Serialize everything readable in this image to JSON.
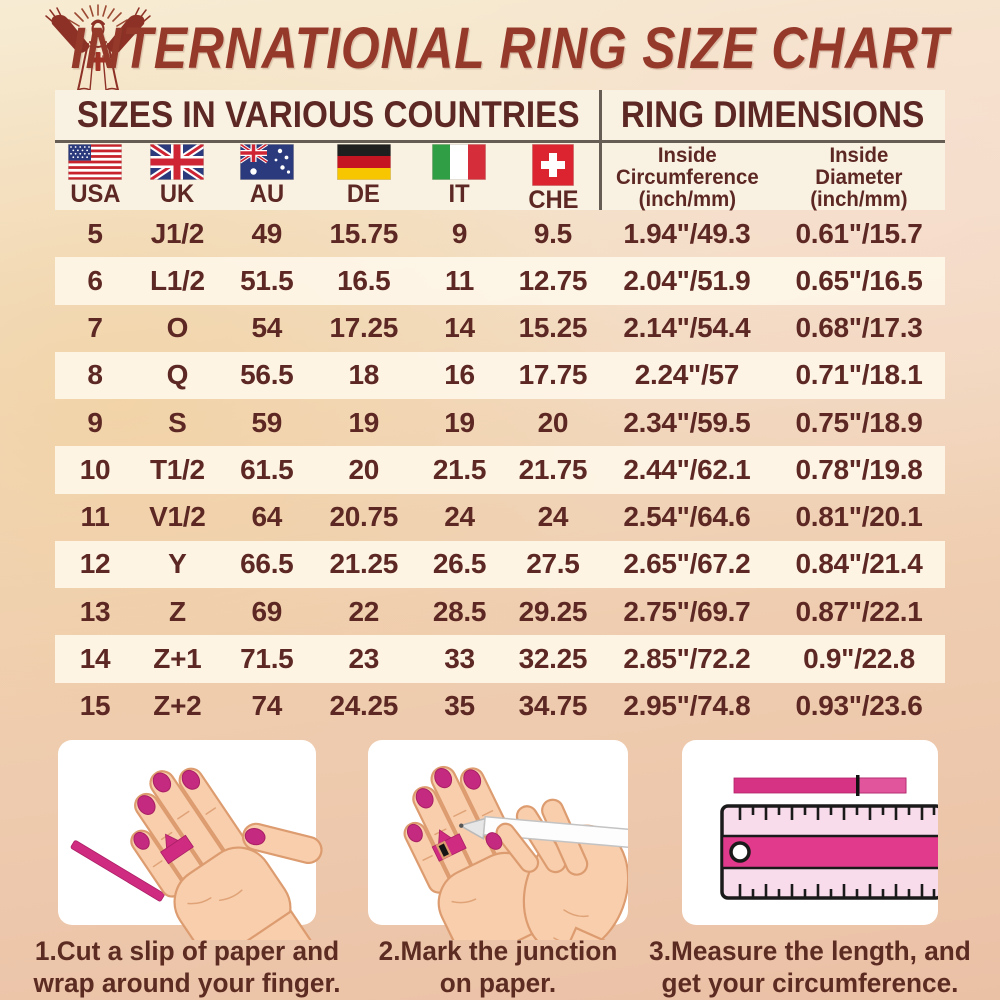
{
  "page": {
    "title": "INTERNATIONAL RING SIZE CHART"
  },
  "icons": {
    "logo": "jesus-with-rays",
    "flags": [
      "usa",
      "uk",
      "au",
      "de",
      "it",
      "che"
    ],
    "illustrations": [
      "hand-with-paper-slip",
      "marking-junction-with-pen",
      "ruler-measuring-strip"
    ]
  },
  "colors": {
    "title_red": "#95392b",
    "text_maroon": "#5d2823",
    "cream_band": "#f9f1e1",
    "divider_gray": "#665e54",
    "accent_pink": "#cf2b80",
    "ruler_magenta": "#e0348a"
  },
  "table": {
    "section_headers": {
      "countries": "SIZES IN VARIOUS COUNTRIES",
      "dimensions": "RING DIMENSIONS"
    },
    "columns": [
      {
        "code": "USA"
      },
      {
        "code": "UK"
      },
      {
        "code": "AU"
      },
      {
        "code": "DE"
      },
      {
        "code": "IT"
      },
      {
        "code": "CHE"
      }
    ],
    "dimension_headers": [
      {
        "line1": "Inside",
        "line2": "Circumference",
        "line3": "(inch/mm)"
      },
      {
        "line1": "Inside",
        "line2": "Diameter",
        "line3": "(inch/mm)"
      }
    ]
  },
  "chart_data": {
    "type": "table",
    "title": "INTERNATIONAL RING SIZE CHART",
    "columns": [
      "USA",
      "UK",
      "AU",
      "DE",
      "IT",
      "CHE",
      "Inside Circumference (inch/mm)",
      "Inside Diameter (inch/mm)"
    ],
    "rows": [
      [
        "5",
        "J1/2",
        "49",
        "15.75",
        "9",
        "9.5",
        "1.94\"/49.3",
        "0.61\"/15.7"
      ],
      [
        "6",
        "L1/2",
        "51.5",
        "16.5",
        "11",
        "12.75",
        "2.04\"/51.9",
        "0.65\"/16.5"
      ],
      [
        "7",
        "O",
        "54",
        "17.25",
        "14",
        "15.25",
        "2.14\"/54.4",
        "0.68\"/17.3"
      ],
      [
        "8",
        "Q",
        "56.5",
        "18",
        "16",
        "17.75",
        "2.24\"/57",
        "0.71\"/18.1"
      ],
      [
        "9",
        "S",
        "59",
        "19",
        "19",
        "20",
        "2.34\"/59.5",
        "0.75\"/18.9"
      ],
      [
        "10",
        "T1/2",
        "61.5",
        "20",
        "21.5",
        "21.75",
        "2.44\"/62.1",
        "0.78\"/19.8"
      ],
      [
        "11",
        "V1/2",
        "64",
        "20.75",
        "24",
        "24",
        "2.54\"/64.6",
        "0.81\"/20.1"
      ],
      [
        "12",
        "Y",
        "66.5",
        "21.25",
        "26.5",
        "27.5",
        "2.65\"/67.2",
        "0.84\"/21.4"
      ],
      [
        "13",
        "Z",
        "69",
        "22",
        "28.5",
        "29.25",
        "2.75\"/69.7",
        "0.87\"/22.1"
      ],
      [
        "14",
        "Z+1",
        "71.5",
        "23",
        "33",
        "32.25",
        "2.85\"/72.2",
        "0.9\"/22.8"
      ],
      [
        "15",
        "Z+2",
        "74",
        "24.25",
        "35",
        "34.75",
        "2.95\"/74.8",
        "0.93\"/23.6"
      ]
    ]
  },
  "instructions": [
    {
      "line1": "1.Cut a slip of paper and",
      "line2": "wrap around your finger."
    },
    {
      "line1": "2.Mark the junction",
      "line2": "on paper."
    },
    {
      "line1": "3.Measure the length, and",
      "line2": "get your circumference."
    }
  ]
}
